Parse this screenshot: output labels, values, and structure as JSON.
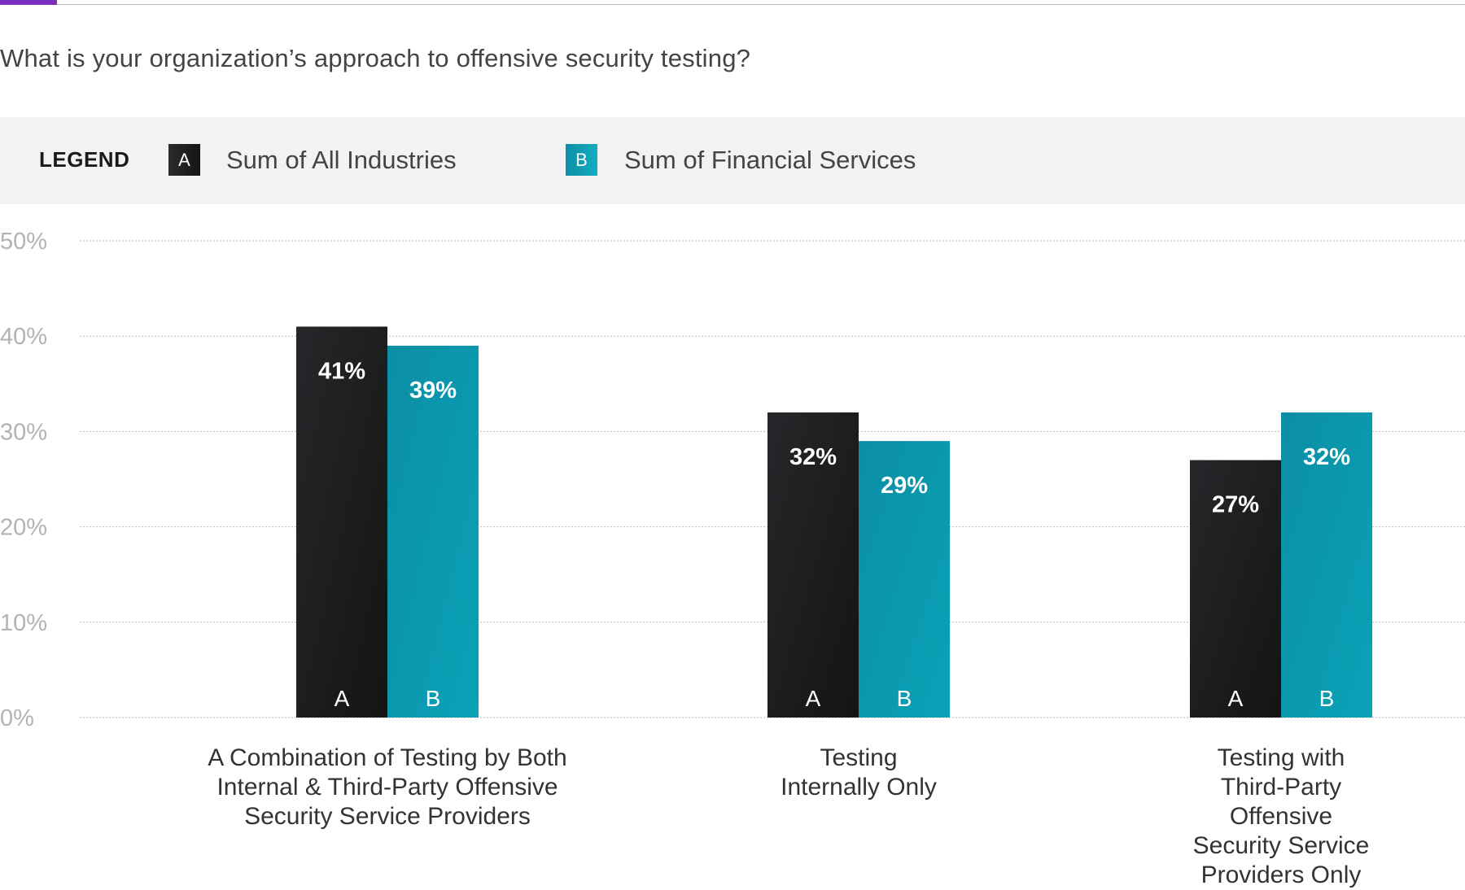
{
  "question": "What is your organization’s approach to offensive security testing?",
  "legend": {
    "title": "LEGEND",
    "items": [
      {
        "key": "A",
        "label": "Sum of All Industries",
        "color": "#1c1c1e"
      },
      {
        "key": "B",
        "label": "Sum of Financial Services",
        "color": "#0b9db3"
      }
    ]
  },
  "chart_data": {
    "type": "bar",
    "categories": [
      "A Combination of Testing by Both Internal & Third-Party Offensive Security Service Providers",
      "Testing Internally Only",
      "Testing with Third-Party Offensive Security Service Providers Only"
    ],
    "category_lines": [
      [
        "A Combination of Testing by Both",
        "Internal & Third-Party Offensive",
        "Security Service Providers"
      ],
      [
        "Testing",
        "Internally Only"
      ],
      [
        "Testing with Third-Party",
        "Offensive Security Service",
        "Providers Only"
      ]
    ],
    "series": [
      {
        "name": "Sum of All Industries",
        "key": "A",
        "values": [
          41,
          32,
          27
        ],
        "labels": [
          "41%",
          "32%",
          "27%"
        ],
        "color": "#1c1c1e"
      },
      {
        "name": "Sum of Financial Services",
        "key": "B",
        "values": [
          39,
          29,
          32
        ],
        "labels": [
          "39%",
          "29%",
          "32%"
        ],
        "color": "#0b9db3"
      }
    ],
    "ylim": [
      0,
      50
    ],
    "yticks": [
      0,
      10,
      20,
      30,
      40,
      50
    ],
    "ytick_labels": [
      "0%",
      "10%",
      "20%",
      "30%",
      "40%",
      "50%"
    ],
    "grid": true,
    "legend_position": "top"
  }
}
